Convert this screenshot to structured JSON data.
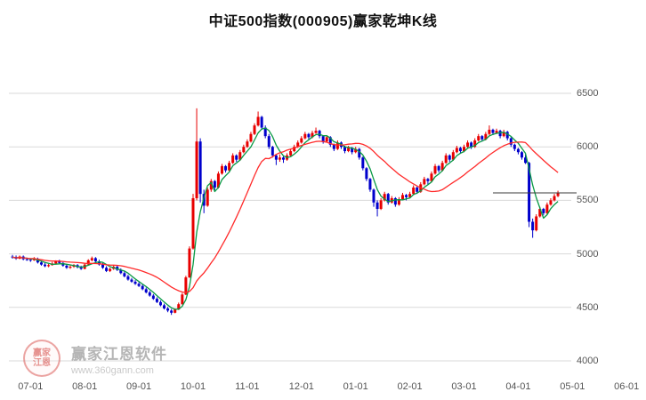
{
  "page": {
    "title": "中证500指数(000905)赢家乾坤K线"
  },
  "watermark": {
    "brand": "赢家江恩软件",
    "site": "www.360gann.com",
    "seal_line1": "赢家",
    "seal_line2": "江恩"
  },
  "colors": {
    "up": "#e80000",
    "down": "#0000cc",
    "ma_fast": "#089944",
    "ma_slow": "#ff2a2a",
    "grid": "#d9d9d9",
    "axis_text": "#555555",
    "price_line": "#3a3a3a"
  },
  "chart_data": {
    "type": "candlestick",
    "title": "中证500指数(000905)赢家乾坤K线",
    "index_name": "中证500指数",
    "symbol": "000905",
    "ylim": [
      4000,
      6500
    ],
    "y_ticks": [
      6500,
      6000,
      5500,
      5000,
      4500,
      4000
    ],
    "x_ticks": [
      {
        "label": "07-01",
        "slot": 5
      },
      {
        "label": "08-01",
        "slot": 20
      },
      {
        "label": "09-01",
        "slot": 35
      },
      {
        "label": "10-01",
        "slot": 50
      },
      {
        "label": "11-01",
        "slot": 65
      },
      {
        "label": "12-01",
        "slot": 80
      },
      {
        "label": "01-01",
        "slot": 95
      },
      {
        "label": "02-01",
        "slot": 110
      },
      {
        "label": "03-01",
        "slot": 125
      },
      {
        "label": "04-01",
        "slot": 140
      },
      {
        "label": "05-01",
        "slot": 155
      },
      {
        "label": "06-01",
        "slot": 170
      }
    ],
    "slots_total": 172,
    "ma_overlays": [
      {
        "name": "fast",
        "period": 5,
        "color_key": "ma_fast"
      },
      {
        "name": "slow",
        "period": 20,
        "color_key": "ma_slow"
      }
    ],
    "price_line": {
      "value": 5570,
      "from_slot": 133
    },
    "last_price": 5570,
    "candles": [
      [
        4975,
        4990,
        4955,
        4970
      ],
      [
        4970,
        4985,
        4945,
        4955
      ],
      [
        4955,
        4985,
        4950,
        4975
      ],
      [
        4975,
        4985,
        4940,
        4950
      ],
      [
        4950,
        4965,
        4935,
        4945
      ],
      [
        4945,
        4960,
        4925,
        4940
      ],
      [
        4940,
        4970,
        4935,
        4955
      ],
      [
        4955,
        4965,
        4910,
        4920
      ],
      [
        4920,
        4935,
        4890,
        4900
      ],
      [
        4900,
        4915,
        4875,
        4885
      ],
      [
        4885,
        4905,
        4875,
        4895
      ],
      [
        4895,
        4925,
        4890,
        4910
      ],
      [
        4910,
        4940,
        4905,
        4930
      ],
      [
        4930,
        4945,
        4905,
        4915
      ],
      [
        4915,
        4925,
        4880,
        4890
      ],
      [
        4890,
        4900,
        4860,
        4870
      ],
      [
        4870,
        4895,
        4860,
        4880
      ],
      [
        4880,
        4905,
        4870,
        4895
      ],
      [
        4895,
        4905,
        4865,
        4875
      ],
      [
        4875,
        4890,
        4850,
        4860
      ],
      [
        4860,
        4910,
        4855,
        4900
      ],
      [
        4900,
        4950,
        4895,
        4940
      ],
      [
        4940,
        4975,
        4930,
        4960
      ],
      [
        4960,
        4970,
        4920,
        4930
      ],
      [
        4930,
        4945,
        4890,
        4900
      ],
      [
        4900,
        4915,
        4860,
        4870
      ],
      [
        4870,
        4885,
        4830,
        4840
      ],
      [
        4840,
        4870,
        4830,
        4860
      ],
      [
        4860,
        4890,
        4850,
        4880
      ],
      [
        4880,
        4890,
        4840,
        4850
      ],
      [
        4850,
        4865,
        4810,
        4820
      ],
      [
        4820,
        4835,
        4780,
        4790
      ],
      [
        4790,
        4805,
        4750,
        4760
      ],
      [
        4760,
        4775,
        4730,
        4740
      ],
      [
        4740,
        4755,
        4710,
        4720
      ],
      [
        4720,
        4735,
        4690,
        4700
      ],
      [
        4700,
        4715,
        4660,
        4670
      ],
      [
        4670,
        4685,
        4630,
        4640
      ],
      [
        4640,
        4655,
        4600,
        4610
      ],
      [
        4610,
        4625,
        4570,
        4580
      ],
      [
        4580,
        4595,
        4540,
        4550
      ],
      [
        4550,
        4565,
        4510,
        4520
      ],
      [
        4520,
        4535,
        4480,
        4490
      ],
      [
        4490,
        4505,
        4455,
        4470
      ],
      [
        4470,
        4485,
        4430,
        4450
      ],
      [
        4450,
        4490,
        4445,
        4480
      ],
      [
        4480,
        4545,
        4475,
        4530
      ],
      [
        4530,
        4635,
        4525,
        4620
      ],
      [
        4620,
        4795,
        4615,
        4780
      ],
      [
        4780,
        5070,
        4775,
        5050
      ],
      [
        5050,
        5560,
        5040,
        5520
      ],
      [
        5520,
        6360,
        5500,
        6050
      ],
      [
        6050,
        6080,
        5480,
        5560
      ],
      [
        5560,
        5600,
        5380,
        5450
      ],
      [
        5450,
        5620,
        5440,
        5600
      ],
      [
        5600,
        5700,
        5580,
        5680
      ],
      [
        5680,
        5690,
        5590,
        5620
      ],
      [
        5620,
        5770,
        5610,
        5750
      ],
      [
        5750,
        5840,
        5740,
        5820
      ],
      [
        5820,
        5830,
        5760,
        5780
      ],
      [
        5780,
        5870,
        5770,
        5850
      ],
      [
        5850,
        5940,
        5840,
        5920
      ],
      [
        5920,
        5930,
        5860,
        5880
      ],
      [
        5880,
        5970,
        5870,
        5950
      ],
      [
        5950,
        6020,
        5940,
        6000
      ],
      [
        6000,
        6070,
        5990,
        6050
      ],
      [
        6050,
        6140,
        6040,
        6120
      ],
      [
        6120,
        6220,
        6110,
        6200
      ],
      [
        6200,
        6330,
        6190,
        6280
      ],
      [
        6280,
        6290,
        6160,
        6180
      ],
      [
        6180,
        6200,
        6080,
        6100
      ],
      [
        6100,
        6120,
        5980,
        6000
      ],
      [
        6000,
        6010,
        5900,
        5920
      ],
      [
        5920,
        5930,
        5830,
        5880
      ],
      [
        5880,
        5930,
        5860,
        5900
      ],
      [
        5900,
        5910,
        5850,
        5880
      ],
      [
        5880,
        5940,
        5870,
        5920
      ],
      [
        5920,
        5980,
        5910,
        5960
      ],
      [
        5960,
        6020,
        5950,
        6000
      ],
      [
        6000,
        6060,
        5990,
        6040
      ],
      [
        6040,
        6100,
        6030,
        6080
      ],
      [
        6080,
        6140,
        6070,
        6120
      ],
      [
        6120,
        6130,
        6070,
        6090
      ],
      [
        6090,
        6150,
        6080,
        6130
      ],
      [
        6130,
        6180,
        6120,
        6150
      ],
      [
        6150,
        6160,
        6080,
        6100
      ],
      [
        6100,
        6110,
        6030,
        6050
      ],
      [
        6050,
        6110,
        6040,
        6090
      ],
      [
        6090,
        6100,
        6000,
        6020
      ],
      [
        6020,
        6030,
        5960,
        5980
      ],
      [
        5980,
        6060,
        5970,
        6040
      ],
      [
        6040,
        6050,
        5980,
        6000
      ],
      [
        6000,
        6010,
        5940,
        5960
      ],
      [
        5960,
        6010,
        5950,
        5990
      ],
      [
        5990,
        6000,
        5930,
        5950
      ],
      [
        5950,
        6000,
        5940,
        5980
      ],
      [
        5980,
        5990,
        5880,
        5900
      ],
      [
        5900,
        5910,
        5780,
        5800
      ],
      [
        5800,
        5810,
        5680,
        5700
      ],
      [
        5700,
        5710,
        5580,
        5600
      ],
      [
        5600,
        5610,
        5440,
        5480
      ],
      [
        5480,
        5500,
        5350,
        5420
      ],
      [
        5420,
        5520,
        5410,
        5500
      ],
      [
        5500,
        5580,
        5490,
        5560
      ],
      [
        5560,
        5570,
        5460,
        5480
      ],
      [
        5480,
        5540,
        5470,
        5520
      ],
      [
        5520,
        5530,
        5440,
        5460
      ],
      [
        5460,
        5530,
        5450,
        5510
      ],
      [
        5510,
        5570,
        5500,
        5550
      ],
      [
        5550,
        5560,
        5500,
        5530
      ],
      [
        5530,
        5580,
        5520,
        5560
      ],
      [
        5560,
        5640,
        5550,
        5620
      ],
      [
        5620,
        5630,
        5560,
        5580
      ],
      [
        5580,
        5670,
        5570,
        5650
      ],
      [
        5650,
        5720,
        5640,
        5700
      ],
      [
        5700,
        5710,
        5650,
        5680
      ],
      [
        5680,
        5770,
        5670,
        5750
      ],
      [
        5750,
        5840,
        5740,
        5820
      ],
      [
        5820,
        5830,
        5760,
        5780
      ],
      [
        5780,
        5870,
        5770,
        5850
      ],
      [
        5850,
        5940,
        5840,
        5920
      ],
      [
        5920,
        5930,
        5860,
        5880
      ],
      [
        5880,
        5970,
        5870,
        5950
      ],
      [
        5950,
        6010,
        5940,
        5990
      ],
      [
        5990,
        6000,
        5940,
        5960
      ],
      [
        5960,
        6020,
        5950,
        6000
      ],
      [
        6000,
        6060,
        5990,
        6040
      ],
      [
        6040,
        6050,
        5980,
        6000
      ],
      [
        6000,
        6080,
        5990,
        6060
      ],
      [
        6060,
        6120,
        6050,
        6100
      ],
      [
        6100,
        6110,
        6050,
        6070
      ],
      [
        6070,
        6140,
        6060,
        6120
      ],
      [
        6120,
        6200,
        6110,
        6160
      ],
      [
        6160,
        6170,
        6110,
        6130
      ],
      [
        6130,
        6170,
        6120,
        6150
      ],
      [
        6150,
        6160,
        6080,
        6100
      ],
      [
        6100,
        6160,
        6090,
        6140
      ],
      [
        6140,
        6150,
        6060,
        6080
      ],
      [
        6080,
        6090,
        6000,
        6020
      ],
      [
        6020,
        6030,
        5960,
        5980
      ],
      [
        5980,
        5990,
        5930,
        5950
      ],
      [
        5950,
        5960,
        5880,
        5900
      ],
      [
        5900,
        5930,
        5840,
        5850
      ],
      [
        5850,
        5860,
        5250,
        5300
      ],
      [
        5300,
        5330,
        5150,
        5220
      ],
      [
        5220,
        5370,
        5210,
        5350
      ],
      [
        5350,
        5440,
        5340,
        5420
      ],
      [
        5420,
        5430,
        5360,
        5380
      ],
      [
        5380,
        5480,
        5370,
        5460
      ],
      [
        5460,
        5520,
        5450,
        5500
      ],
      [
        5500,
        5560,
        5490,
        5540
      ],
      [
        5540,
        5590,
        5530,
        5570
      ]
    ]
  }
}
